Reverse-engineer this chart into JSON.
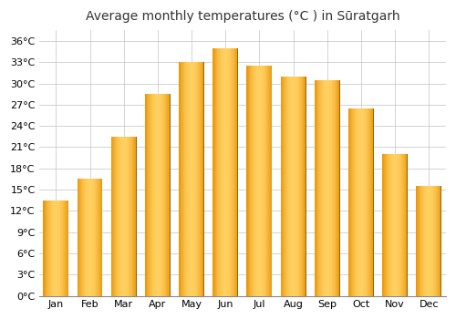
{
  "title": "Average monthly temperatures (°C ) in Sūratgarh",
  "months": [
    "Jan",
    "Feb",
    "Mar",
    "Apr",
    "May",
    "Jun",
    "Jul",
    "Aug",
    "Sep",
    "Oct",
    "Nov",
    "Dec"
  ],
  "temperatures": [
    13.5,
    16.5,
    22.5,
    28.5,
    33.0,
    35.0,
    32.5,
    31.0,
    30.5,
    26.5,
    20.0,
    15.5
  ],
  "bar_color_dark": "#E8960A",
  "bar_color_mid": "#FFC020",
  "bar_color_light": "#FFD060",
  "bar_edge_color": "#A06000",
  "ytick_values": [
    0,
    3,
    6,
    9,
    12,
    15,
    18,
    21,
    24,
    27,
    30,
    33,
    36
  ],
  "ylim": [
    0,
    37.5
  ],
  "background_color": "#FFFFFF",
  "plot_bg_color": "#FFFFFF",
  "grid_color": "#CCCCCC",
  "title_fontsize": 10,
  "tick_fontsize": 8,
  "bar_width": 0.75
}
